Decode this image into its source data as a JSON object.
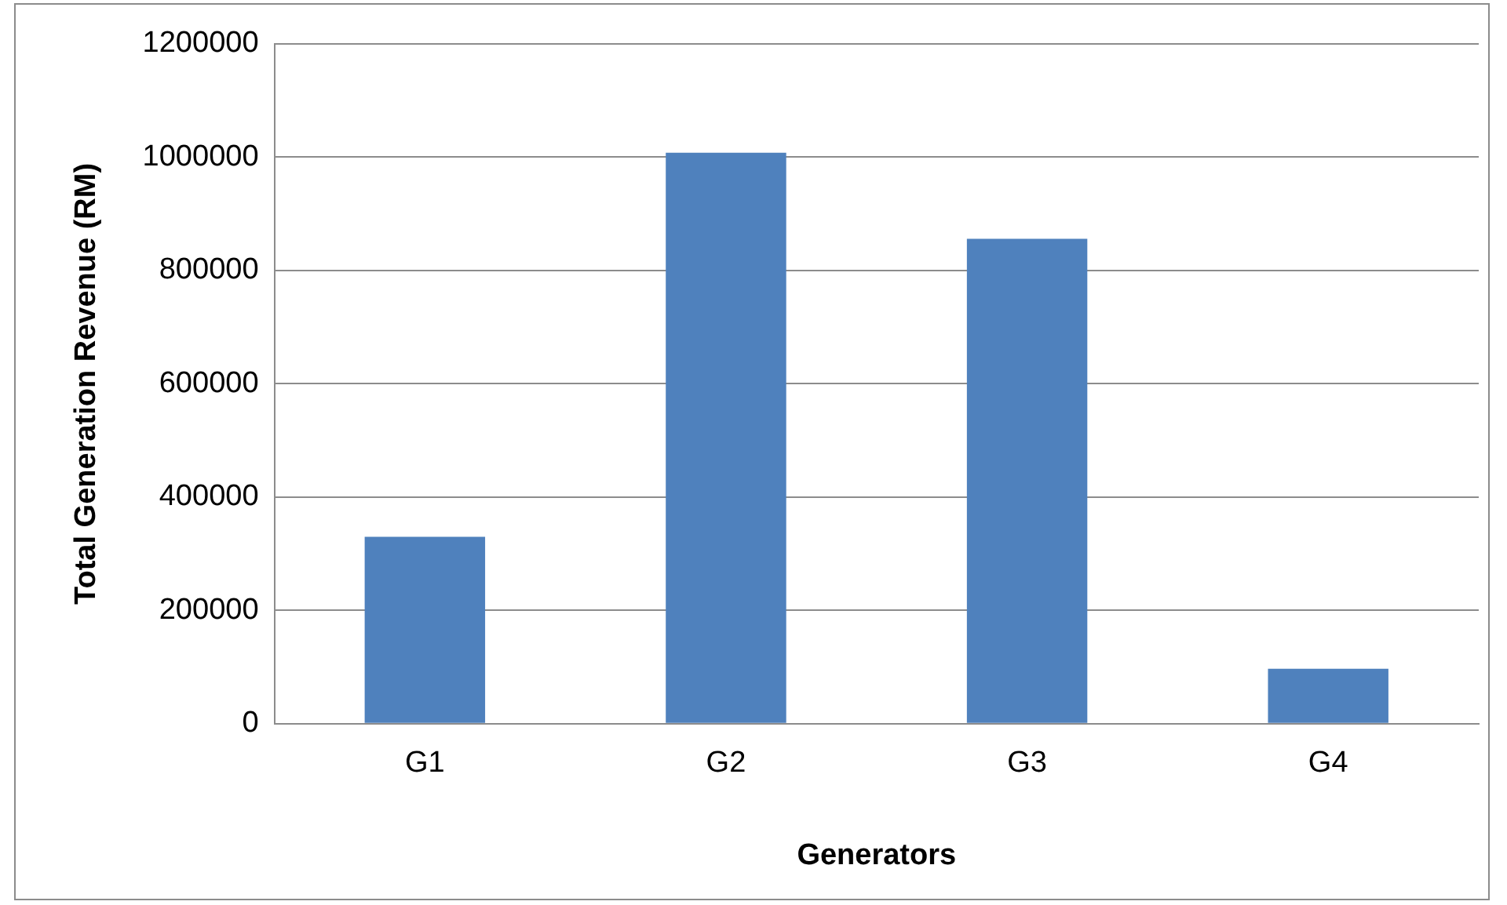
{
  "chart_data": {
    "type": "bar",
    "xlabel": "Generators",
    "ylabel": "Total Generation Revenue (RM)",
    "categories": [
      "G1",
      "G2",
      "G3",
      "G4"
    ],
    "values": [
      330000,
      1008000,
      856000,
      97000
    ],
    "color": "#4f81bd",
    "ylim": [
      0,
      1200000
    ],
    "yticks": [
      0,
      200000,
      400000,
      600000,
      800000,
      1000000,
      1200000
    ],
    "grid": "y",
    "legend": false
  }
}
